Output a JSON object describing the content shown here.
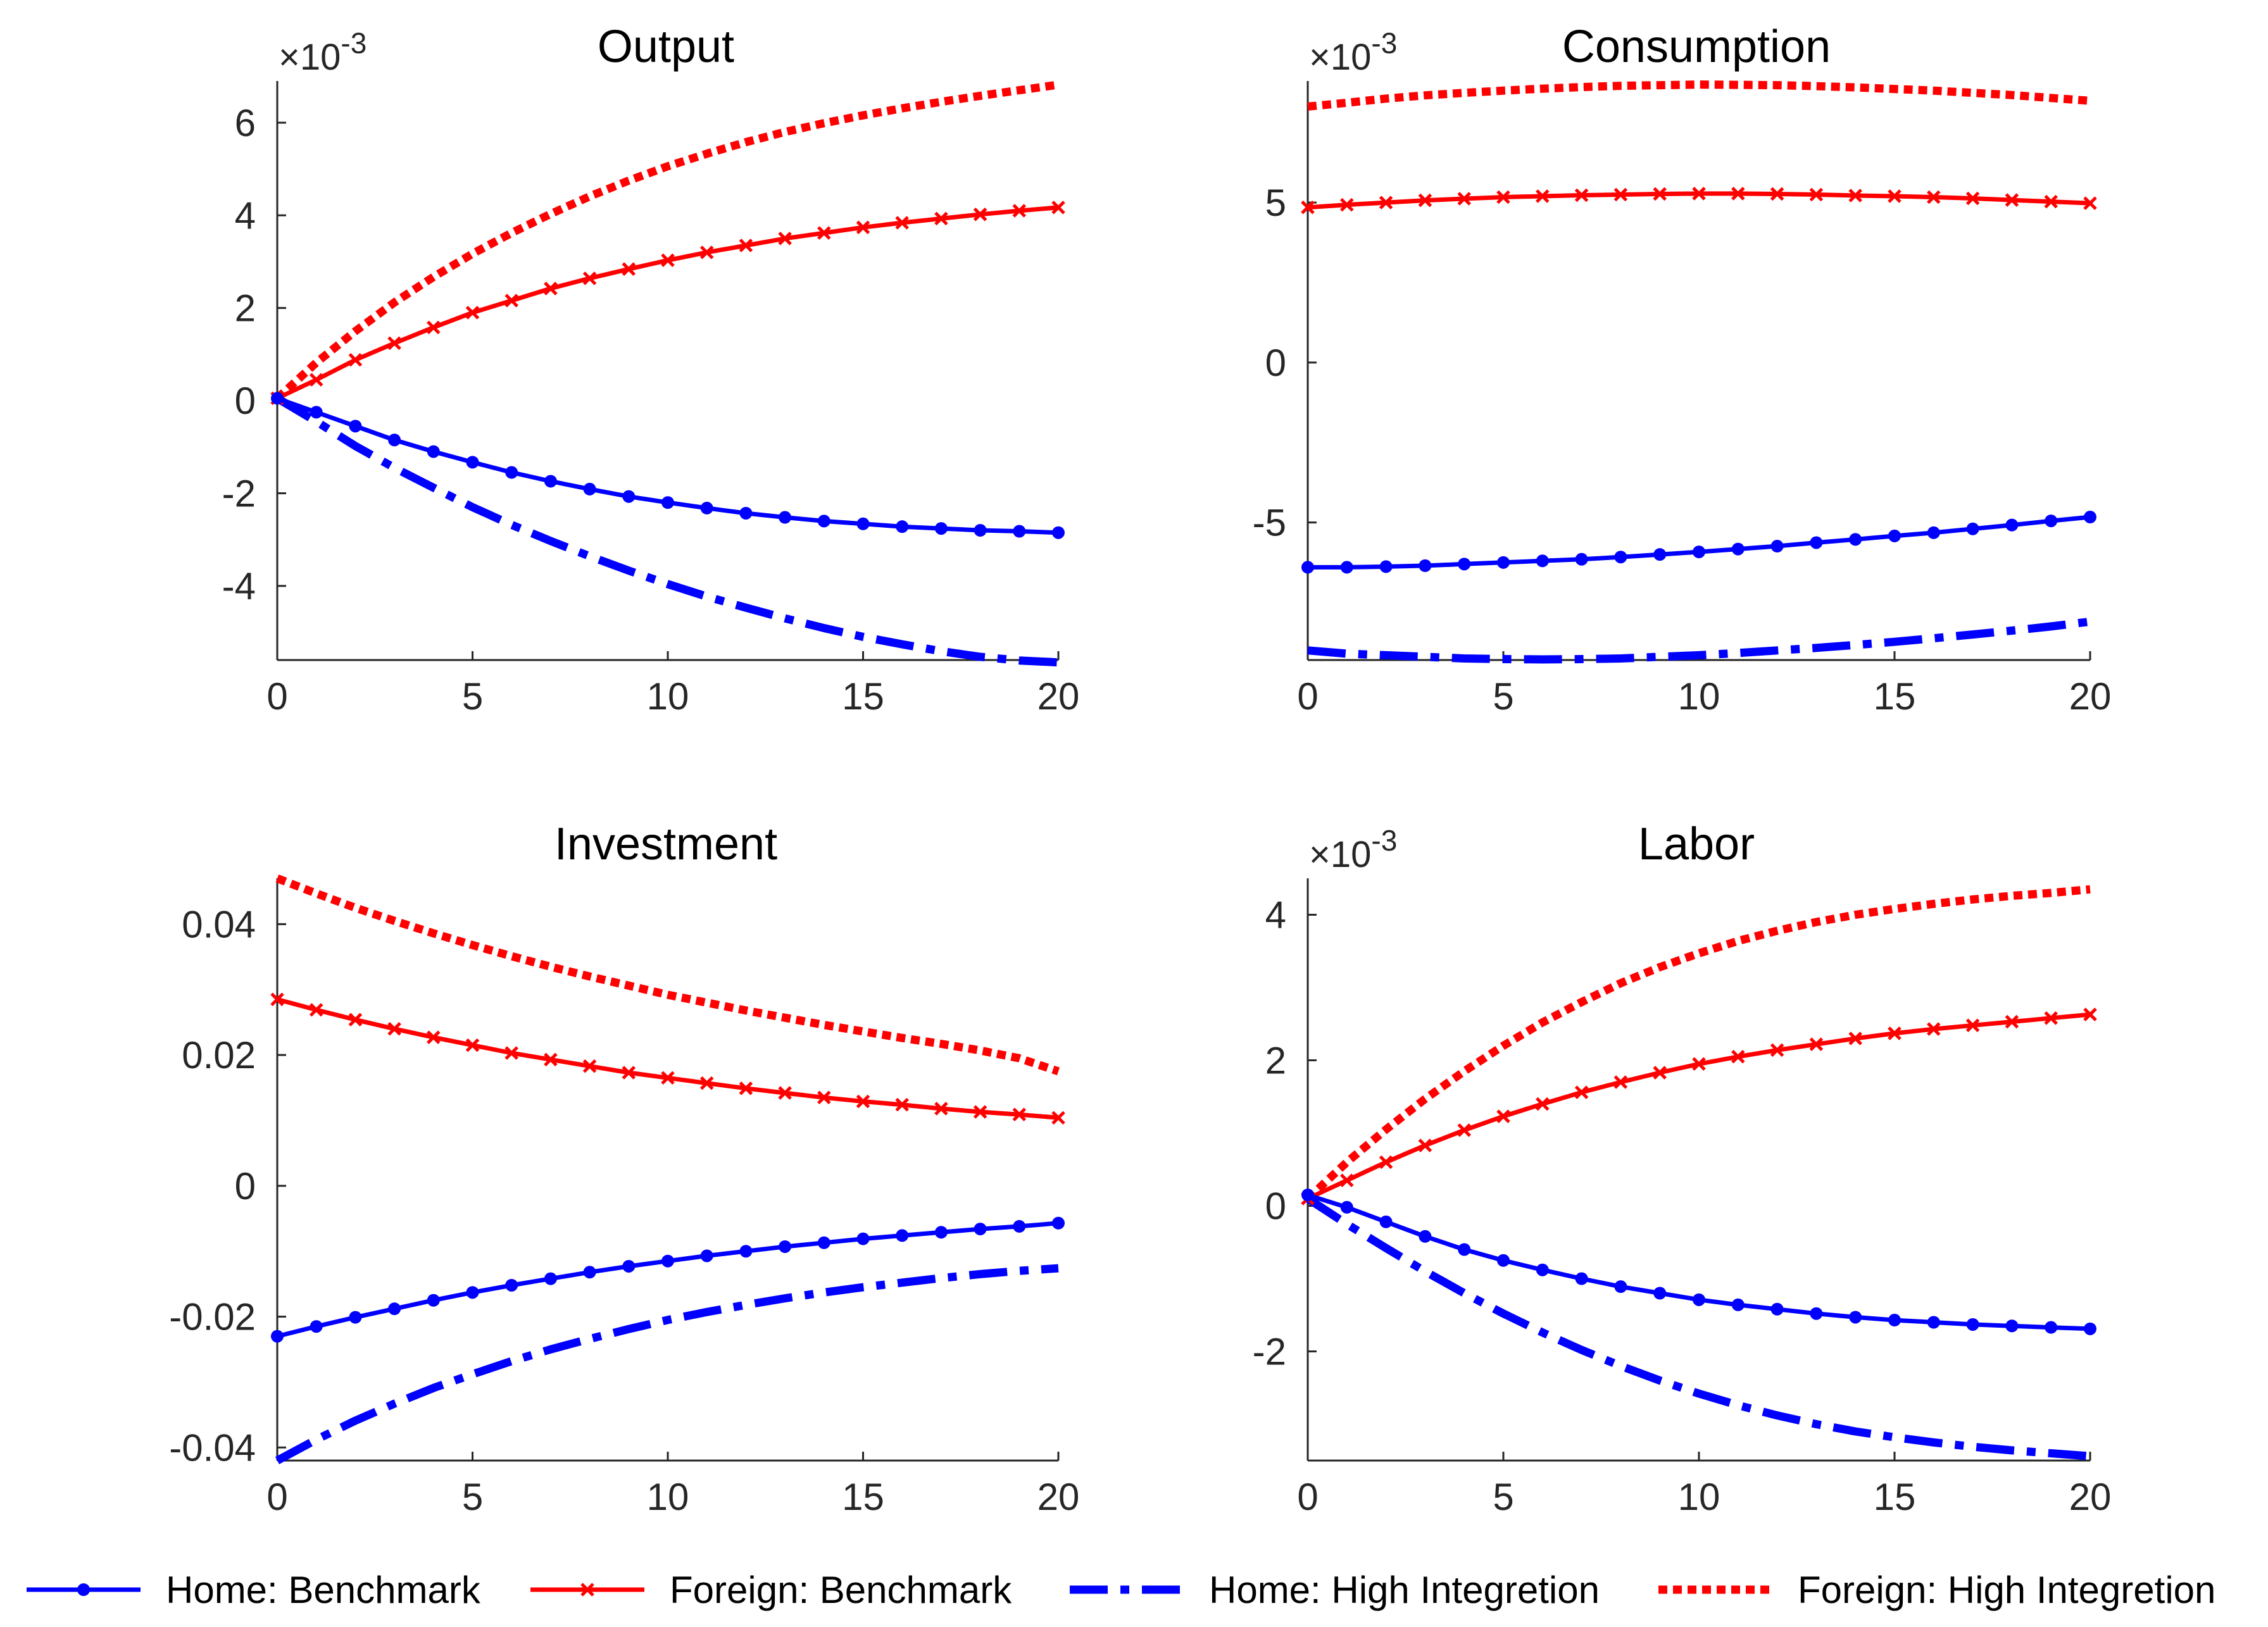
{
  "figure": {
    "legend": [
      {
        "label": "Home: Benchmark",
        "color": "#0000ff",
        "style": "solid",
        "marker": "dot"
      },
      {
        "label": "Foreign: Benchmark",
        "color": "#ff0000",
        "style": "solid",
        "marker": "x"
      },
      {
        "label": "Home: High Integretion",
        "color": "#0000ff",
        "style": "dashdot",
        "marker": "none"
      },
      {
        "label": "Foreign: High Integretion",
        "color": "#ff0000",
        "style": "dotted",
        "marker": "none"
      }
    ],
    "legend_position": "bottom"
  },
  "chart_data": [
    {
      "type": "line",
      "title": "Output",
      "exponent": "×10-3",
      "x": [
        0,
        1,
        2,
        3,
        4,
        5,
        6,
        7,
        8,
        9,
        10,
        11,
        12,
        13,
        14,
        15,
        16,
        17,
        18,
        19,
        20
      ],
      "xlim": [
        0,
        20
      ],
      "xticks": [
        0,
        5,
        10,
        15,
        20
      ],
      "ylim": [
        -5.6,
        6.9
      ],
      "yticks": [
        -4,
        -2,
        0,
        2,
        4,
        6
      ],
      "yticklabels": [
        "-4",
        "-2",
        "0",
        "2",
        "4",
        "6"
      ],
      "series": [
        {
          "name": "Home: Benchmark",
          "values": [
            0.05,
            -0.25,
            -0.55,
            -0.85,
            -1.1,
            -1.33,
            -1.55,
            -1.74,
            -1.91,
            -2.07,
            -2.2,
            -2.32,
            -2.43,
            -2.52,
            -2.6,
            -2.66,
            -2.72,
            -2.76,
            -2.8,
            -2.82,
            -2.85
          ]
        },
        {
          "name": "Foreign: Benchmark",
          "values": [
            0.05,
            0.45,
            0.88,
            1.24,
            1.58,
            1.9,
            2.16,
            2.42,
            2.64,
            2.84,
            3.03,
            3.2,
            3.35,
            3.5,
            3.62,
            3.74,
            3.84,
            3.93,
            4.02,
            4.1,
            4.17
          ]
        },
        {
          "name": "Home: High Integretion",
          "values": [
            0.05,
            -0.45,
            -0.98,
            -1.45,
            -1.88,
            -2.3,
            -2.68,
            -3.03,
            -3.36,
            -3.67,
            -3.96,
            -4.23,
            -4.47,
            -4.7,
            -4.91,
            -5.1,
            -5.26,
            -5.41,
            -5.53,
            -5.61,
            -5.65
          ]
        },
        {
          "name": "Foreign: High Integretion",
          "values": [
            0.05,
            0.82,
            1.5,
            2.12,
            2.67,
            3.17,
            3.62,
            4.03,
            4.41,
            4.75,
            5.06,
            5.33,
            5.58,
            5.8,
            5.99,
            6.16,
            6.31,
            6.45,
            6.58,
            6.7,
            6.82
          ]
        }
      ]
    },
    {
      "type": "line",
      "title": "Consumption",
      "exponent": "×10-3",
      "x": [
        0,
        1,
        2,
        3,
        4,
        5,
        6,
        7,
        8,
        9,
        10,
        11,
        12,
        13,
        14,
        15,
        16,
        17,
        18,
        19,
        20
      ],
      "xlim": [
        0,
        20
      ],
      "xticks": [
        0,
        5,
        10,
        15,
        20
      ],
      "ylim": [
        -9.3,
        8.8
      ],
      "yticks": [
        -5,
        0,
        5
      ],
      "yticklabels": [
        "-5",
        "0",
        "5"
      ],
      "series": [
        {
          "name": "Home: Benchmark",
          "values": [
            -6.4,
            -6.4,
            -6.38,
            -6.35,
            -6.3,
            -6.25,
            -6.2,
            -6.15,
            -6.08,
            -6.0,
            -5.92,
            -5.83,
            -5.74,
            -5.63,
            -5.53,
            -5.42,
            -5.32,
            -5.2,
            -5.08,
            -4.95,
            -4.83
          ]
        },
        {
          "name": "Foreign: Benchmark",
          "values": [
            4.85,
            4.93,
            5.0,
            5.07,
            5.12,
            5.17,
            5.2,
            5.23,
            5.25,
            5.27,
            5.28,
            5.28,
            5.27,
            5.25,
            5.22,
            5.2,
            5.17,
            5.13,
            5.08,
            5.03,
            4.98
          ]
        },
        {
          "name": "Home: High Integretion",
          "values": [
            -9.0,
            -9.1,
            -9.15,
            -9.2,
            -9.25,
            -9.27,
            -9.28,
            -9.27,
            -9.25,
            -9.2,
            -9.15,
            -9.08,
            -9.0,
            -8.92,
            -8.83,
            -8.73,
            -8.62,
            -8.5,
            -8.38,
            -8.25,
            -8.1
          ]
        },
        {
          "name": "Foreign: High Integretion",
          "values": [
            8.0,
            8.12,
            8.25,
            8.35,
            8.43,
            8.5,
            8.56,
            8.61,
            8.65,
            8.67,
            8.69,
            8.68,
            8.67,
            8.64,
            8.6,
            8.55,
            8.5,
            8.43,
            8.36,
            8.27,
            8.18
          ]
        }
      ]
    },
    {
      "type": "line",
      "title": "Investment",
      "exponent": "",
      "x": [
        0,
        1,
        2,
        3,
        4,
        5,
        6,
        7,
        8,
        9,
        10,
        11,
        12,
        13,
        14,
        15,
        16,
        17,
        18,
        19,
        20
      ],
      "xlim": [
        0,
        20
      ],
      "xticks": [
        0,
        5,
        10,
        15,
        20
      ],
      "ylim": [
        -0.042,
        0.047
      ],
      "yticks": [
        -0.04,
        -0.02,
        0,
        0.02,
        0.04
      ],
      "yticklabels": [
        "-0.04",
        "-0.02",
        "0",
        "0.02",
        "0.04"
      ],
      "series": [
        {
          "name": "Home: Benchmark",
          "values": [
            -0.023,
            -0.0215,
            -0.0201,
            -0.0188,
            -0.0175,
            -0.0163,
            -0.0152,
            -0.0142,
            -0.0132,
            -0.0123,
            -0.0115,
            -0.0107,
            -0.01,
            -0.0093,
            -0.0087,
            -0.0081,
            -0.0076,
            -0.0071,
            -0.0066,
            -0.0062,
            -0.0057
          ]
        },
        {
          "name": "Foreign: Benchmark",
          "values": [
            0.0285,
            0.0269,
            0.0254,
            0.024,
            0.0227,
            0.0215,
            0.0203,
            0.0193,
            0.0183,
            0.0173,
            0.0165,
            0.0157,
            0.0149,
            0.0142,
            0.0135,
            0.0129,
            0.0124,
            0.0118,
            0.0113,
            0.0109,
            0.0104
          ]
        },
        {
          "name": "Home: High Integretion",
          "values": [
            -0.042,
            -0.0388,
            -0.0359,
            -0.0333,
            -0.0309,
            -0.0288,
            -0.0268,
            -0.025,
            -0.0234,
            -0.0219,
            -0.0205,
            -0.0193,
            -0.0182,
            -0.0172,
            -0.0163,
            -0.0155,
            -0.0148,
            -0.0141,
            -0.0135,
            -0.013,
            -0.0126
          ]
        },
        {
          "name": "Foreign: High Integretion",
          "values": [
            0.047,
            0.0447,
            0.0425,
            0.0405,
            0.0386,
            0.0368,
            0.0351,
            0.0335,
            0.032,
            0.0306,
            0.0292,
            0.028,
            0.0268,
            0.0257,
            0.0246,
            0.0236,
            0.0226,
            0.0217,
            0.0207,
            0.0195,
            0.0175
          ]
        }
      ]
    },
    {
      "type": "line",
      "title": "Labor",
      "exponent": "×10-3",
      "x": [
        0,
        1,
        2,
        3,
        4,
        5,
        6,
        7,
        8,
        9,
        10,
        11,
        12,
        13,
        14,
        15,
        16,
        17,
        18,
        19,
        20
      ],
      "xlim": [
        0,
        20
      ],
      "xticks": [
        0,
        5,
        10,
        15,
        20
      ],
      "ylim": [
        -3.5,
        4.5
      ],
      "yticks": [
        -2,
        0,
        2,
        4
      ],
      "yticklabels": [
        "-2",
        "0",
        "2",
        "4"
      ],
      "series": [
        {
          "name": "Home: Benchmark",
          "values": [
            0.15,
            -0.02,
            -0.22,
            -0.42,
            -0.6,
            -0.75,
            -0.88,
            -1.0,
            -1.11,
            -1.2,
            -1.29,
            -1.36,
            -1.42,
            -1.48,
            -1.53,
            -1.57,
            -1.6,
            -1.63,
            -1.65,
            -1.67,
            -1.69
          ]
        },
        {
          "name": "Foreign: Benchmark",
          "values": [
            0.1,
            0.35,
            0.6,
            0.83,
            1.04,
            1.23,
            1.4,
            1.56,
            1.7,
            1.83,
            1.95,
            2.05,
            2.14,
            2.22,
            2.3,
            2.37,
            2.43,
            2.48,
            2.53,
            2.58,
            2.63
          ]
        },
        {
          "name": "Home: High Integretion",
          "values": [
            0.1,
            -0.25,
            -0.58,
            -0.9,
            -1.2,
            -1.48,
            -1.74,
            -1.98,
            -2.2,
            -2.4,
            -2.58,
            -2.74,
            -2.88,
            -3.0,
            -3.1,
            -3.18,
            -3.25,
            -3.31,
            -3.36,
            -3.4,
            -3.44
          ]
        },
        {
          "name": "Foreign: High Integretion",
          "values": [
            0.1,
            0.6,
            1.05,
            1.47,
            1.85,
            2.2,
            2.52,
            2.8,
            3.06,
            3.28,
            3.47,
            3.64,
            3.78,
            3.9,
            4.0,
            4.08,
            4.15,
            4.21,
            4.26,
            4.3,
            4.35
          ]
        }
      ]
    }
  ]
}
